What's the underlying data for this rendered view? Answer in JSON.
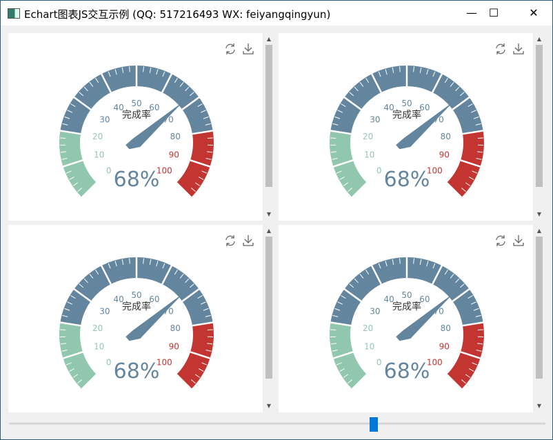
{
  "window": {
    "title": "Echart图表JS交互示例 (QQ: 517216493 WX: feiyangqingyun)",
    "minimize": "—",
    "maximize": "☐",
    "close": "✕"
  },
  "gauges": [
    {
      "title": "完成率",
      "value": 68,
      "value_label": "68%",
      "min": 0,
      "max": 100
    },
    {
      "title": "完成率",
      "value": 68,
      "value_label": "68%",
      "min": 0,
      "max": 100
    },
    {
      "title": "完成率",
      "value": 68,
      "value_label": "68%",
      "min": 0,
      "max": 100
    },
    {
      "title": "完成率",
      "value": 68,
      "value_label": "68%",
      "min": 0,
      "max": 100
    }
  ],
  "axis_labels": [
    "0",
    "10",
    "20",
    "30",
    "40",
    "50",
    "60",
    "70",
    "80",
    "90",
    "100"
  ],
  "bands": [
    {
      "to": 0.2,
      "color": "#91c7ae"
    },
    {
      "to": 0.8,
      "color": "#63869e"
    },
    {
      "to": 1.0,
      "color": "#c23531"
    }
  ],
  "toolbox": {
    "icons": [
      "refresh-icon",
      "download-icon"
    ]
  },
  "slider": {
    "value": 68,
    "min": 0,
    "max": 100,
    "color": "#0078d7"
  },
  "colors": {
    "title": "#333333",
    "value": "#63869e",
    "pointer": "#63869e"
  }
}
